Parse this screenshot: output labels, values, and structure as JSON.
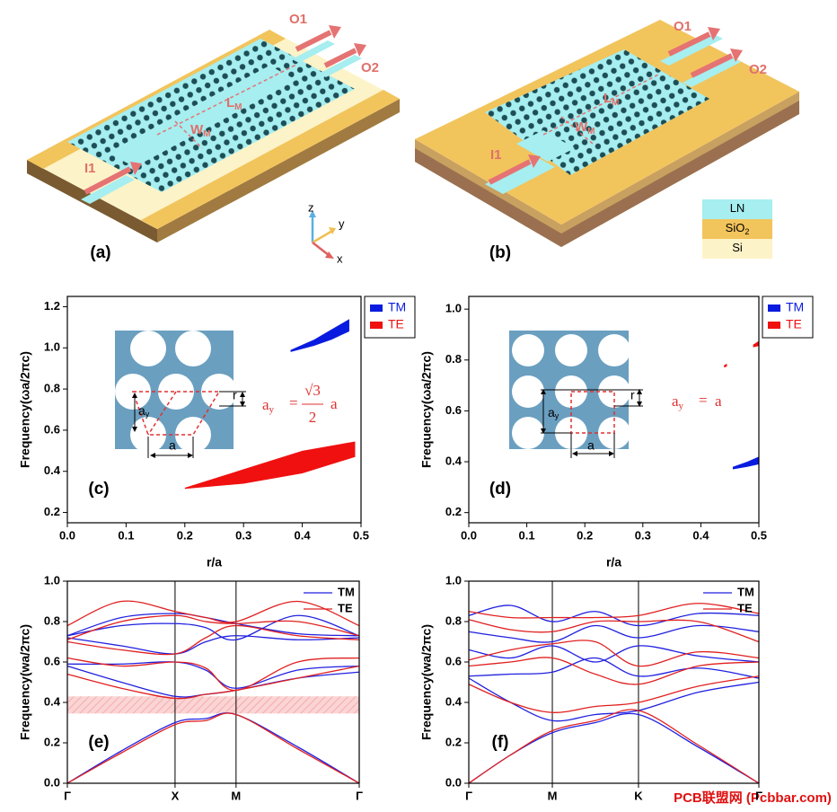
{
  "panels": {
    "a": {
      "label": "(a)",
      "input": "I1",
      "outputs": [
        "O1",
        "O2"
      ],
      "length": {
        "main": "L",
        "sub": "M"
      },
      "width": {
        "main": "W",
        "sub": "M"
      }
    },
    "b": {
      "label": "(b)",
      "input": "I1",
      "outputs": [
        "O1",
        "O2"
      ],
      "length": {
        "main": "L",
        "sub": "M"
      },
      "width": {
        "main": "W",
        "sub": "M"
      }
    },
    "axes": [
      "z",
      "y",
      "x"
    ],
    "materials": [
      {
        "main": "LN",
        "color": "#a6eef0"
      },
      {
        "main": "SiO",
        "sub": "2",
        "color": "#f2c45c"
      },
      {
        "main": "Si",
        "color": "#fdf3c8"
      }
    ]
  },
  "chart_data": [
    {
      "type": "gapmap",
      "panel_label": "(c)",
      "xlabel": "r/a",
      "ylabel": "Frequency(ωa/2πc)",
      "xlim": [
        0,
        0.5
      ],
      "xticks": [
        {
          "value": 0,
          "label": "0.0"
        },
        0.1,
        0.2,
        0.3,
        0.4,
        0.5
      ],
      "ylim": [
        0.15,
        1.25
      ],
      "yticks": [
        0.2,
        0.4,
        0.6,
        0.8,
        {
          "value": 1,
          "label": "1.0"
        },
        1.2
      ],
      "legend": "outside-right",
      "series": [
        {
          "name": "TM",
          "color": "#0a1be0",
          "regions": [
            {
              "x": [
                0.38,
                0.42,
                0.45,
                0.48
              ],
              "lower": [
                0.98,
                1.01,
                1.04,
                1.08
              ],
              "upper": [
                0.99,
                1.04,
                1.09,
                1.14
              ]
            }
          ]
        },
        {
          "name": "TE",
          "color": "#f01010",
          "regions": [
            {
              "x": [
                0.2,
                0.3,
                0.4,
                0.49
              ],
              "lower": [
                0.315,
                0.34,
                0.39,
                0.47
              ],
              "upper": [
                0.32,
                0.41,
                0.5,
                0.545
              ]
            }
          ]
        }
      ],
      "inset": {
        "lattice_label": {
          "main": "a",
          "sub": "y"
        },
        "radius_label": "r",
        "period_label": "a",
        "formula": {
          "lhs": {
            "main": "a",
            "sub": "y"
          },
          "eq": "=",
          "num": "√3",
          "den": "2",
          "rhs": "a"
        }
      }
    },
    {
      "type": "gapmap",
      "panel_label": "(d)",
      "xlabel": "r/a",
      "ylabel": "Frequency(ωa/2πc)",
      "xlim": [
        0,
        0.5
      ],
      "xticks": [
        {
          "value": 0,
          "label": "0.0"
        },
        0.1,
        0.2,
        0.3,
        0.4,
        0.5
      ],
      "ylim": [
        0.16,
        1.05
      ],
      "yticks": [
        0.2,
        0.4,
        0.6,
        0.8,
        {
          "value": 1,
          "label": "1.0"
        }
      ],
      "legend": "outside-right",
      "series": [
        {
          "name": "TM",
          "color": "#0a1be0",
          "regions": [
            {
              "x": [
                0.455,
                0.48,
                0.5
              ],
              "lower": [
                0.37,
                0.38,
                0.39
              ],
              "upper": [
                0.38,
                0.4,
                0.42
              ]
            }
          ]
        },
        {
          "name": "TE",
          "color": "#f01010",
          "regions": [
            {
              "x": [
                0.44,
                0.445
              ],
              "lower": [
                0.77,
                0.775
              ],
              "upper": [
                0.78,
                0.785
              ]
            },
            {
              "x": [
                0.49,
                0.5
              ],
              "lower": [
                0.85,
                0.855
              ],
              "upper": [
                0.86,
                0.875
              ]
            }
          ]
        }
      ],
      "inset": {
        "lattice_label": {
          "main": "a",
          "sub": "y"
        },
        "radius_label": "r",
        "period_label": "a",
        "formula": {
          "lhs": {
            "main": "a",
            "sub": "y"
          },
          "eq": "=",
          "rhs": "a"
        }
      }
    },
    {
      "type": "band",
      "panel_label": "(e)",
      "ylabel": "Frequency(wa/2πc)",
      "xlim": [
        0,
        1
      ],
      "xticks": [
        {
          "value": 0,
          "label": "Γ"
        },
        {
          "value": 0.369,
          "label": "X"
        },
        {
          "value": 0.578,
          "label": "M"
        },
        {
          "value": 1,
          "label": "Γ"
        }
      ],
      "ylim": [
        0,
        1
      ],
      "yticks": [
        {
          "value": 0,
          "label": "0.0"
        },
        0.2,
        0.4,
        0.6,
        0.8,
        {
          "value": 1,
          "label": "1.0"
        }
      ],
      "legend": "upper-right",
      "gap": [
        0.345,
        0.43
      ],
      "x": [
        0,
        0.185,
        0.369,
        0.474,
        0.578,
        0.789,
        1
      ],
      "series": [
        {
          "name": "TM",
          "color": "#2020e0",
          "bands": [
            [
              0,
              0.16,
              0.3,
              0.32,
              0.34,
              0.18,
              0
            ],
            [
              0.58,
              0.5,
              0.43,
              0.44,
              0.46,
              0.52,
              0.55
            ],
            [
              0.59,
              0.59,
              0.6,
              0.56,
              0.47,
              0.56,
              0.58
            ],
            [
              0.72,
              0.68,
              0.64,
              0.7,
              0.73,
              0.71,
              0.72
            ],
            [
              0.73,
              0.78,
              0.79,
              0.77,
              0.71,
              0.83,
              0.73
            ],
            [
              0.73,
              0.82,
              0.84,
              0.82,
              0.79,
              0.74,
              0.73
            ]
          ]
        },
        {
          "name": "TE",
          "color": "#e02020",
          "bands": [
            [
              0,
              0.15,
              0.29,
              0.31,
              0.34,
              0.17,
              0
            ],
            [
              0.54,
              0.47,
              0.42,
              0.44,
              0.46,
              0.52,
              0.58
            ],
            [
              0.62,
              0.58,
              0.6,
              0.57,
              0.46,
              0.6,
              0.62
            ],
            [
              0.7,
              0.66,
              0.64,
              0.72,
              0.78,
              0.73,
              0.71
            ],
            [
              0.71,
              0.8,
              0.83,
              0.8,
              0.79,
              0.8,
              0.73
            ],
            [
              0.78,
              0.9,
              0.85,
              0.82,
              0.8,
              0.9,
              0.78
            ]
          ]
        }
      ]
    },
    {
      "type": "band",
      "panel_label": "(f)",
      "ylabel": "Frequency(wa/2πc)",
      "xlim": [
        0,
        1
      ],
      "xticks": [
        {
          "value": 0,
          "label": "Γ"
        },
        {
          "value": 0.288,
          "label": "M"
        },
        {
          "value": 0.585,
          "label": "K"
        },
        {
          "value": 1,
          "label": "Γ"
        }
      ],
      "ylim": [
        0,
        1
      ],
      "yticks": [
        {
          "value": 0,
          "label": "0.0"
        },
        0.2,
        0.4,
        0.6,
        0.8,
        {
          "value": 1,
          "label": "1.0"
        }
      ],
      "legend": "upper-right",
      "x": [
        0,
        0.144,
        0.288,
        0.436,
        0.585,
        0.79,
        1
      ],
      "series": [
        {
          "name": "TM",
          "color": "#2020e0",
          "bands": [
            [
              0,
              0.14,
              0.25,
              0.3,
              0.34,
              0.18,
              0
            ],
            [
              0.52,
              0.4,
              0.31,
              0.34,
              0.36,
              0.45,
              0.5
            ],
            [
              0.53,
              0.54,
              0.55,
              0.62,
              0.53,
              0.57,
              0.52
            ],
            [
              0.66,
              0.62,
              0.68,
              0.6,
              0.68,
              0.63,
              0.6
            ],
            [
              0.75,
              0.72,
              0.7,
              0.78,
              0.72,
              0.78,
              0.75
            ],
            [
              0.83,
              0.88,
              0.8,
              0.85,
              0.78,
              0.84,
              0.83
            ]
          ]
        },
        {
          "name": "TE",
          "color": "#e02020",
          "bands": [
            [
              0,
              0.14,
              0.26,
              0.31,
              0.36,
              0.19,
              0
            ],
            [
              0.49,
              0.4,
              0.35,
              0.38,
              0.4,
              0.48,
              0.53
            ],
            [
              0.58,
              0.6,
              0.62,
              0.54,
              0.49,
              0.58,
              0.6
            ],
            [
              0.61,
              0.66,
              0.69,
              0.7,
              0.58,
              0.65,
              0.62
            ],
            [
              0.81,
              0.76,
              0.75,
              0.8,
              0.8,
              0.8,
              0.7
            ],
            [
              0.85,
              0.82,
              0.82,
              0.82,
              0.83,
              0.89,
              0.84
            ]
          ]
        }
      ]
    }
  ],
  "watermark": "PCB联盟网 (Pcbbar.com)"
}
